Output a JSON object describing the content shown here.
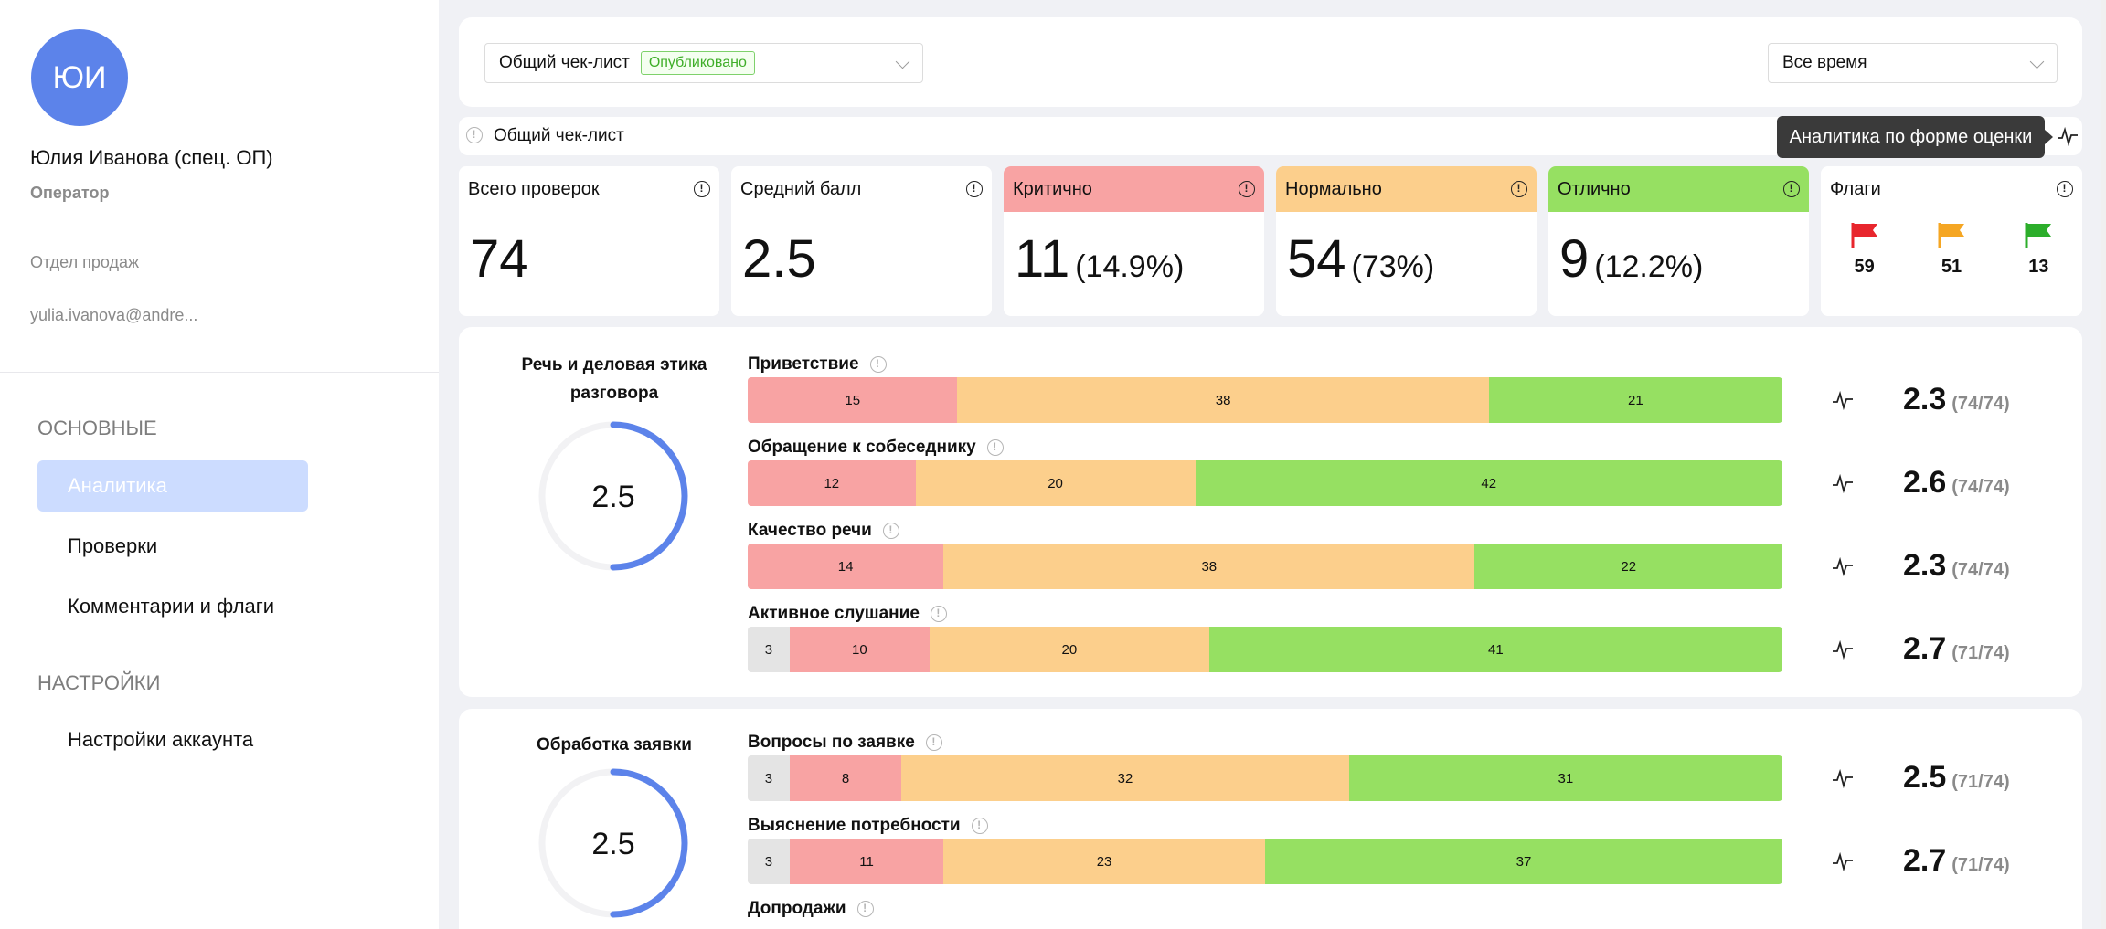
{
  "user": {
    "initials": "ЮИ",
    "name": "Юлия Иванова (спец. ОП)",
    "role": "Оператор",
    "department": "Отдел продаж",
    "email": "yulia.ivanova@andre..."
  },
  "nav": {
    "main_label": "ОСНОВНЫЕ",
    "items": [
      {
        "label": "Аналитика",
        "active": true
      },
      {
        "label": "Проверки",
        "active": false
      },
      {
        "label": "Комментарии и флаги",
        "active": false
      }
    ],
    "settings_label": "НАСТРОЙКИ",
    "settings_items": [
      {
        "label": "Настройки аккаунта"
      }
    ]
  },
  "filters": {
    "checklist": {
      "value": "Общий чек-лист",
      "badge": "Опубликовано"
    },
    "period": {
      "value": "Все время"
    }
  },
  "checklist_bar": {
    "label": "Общий чек-лист",
    "tooltip": "Аналитика по форме оценки"
  },
  "stats": {
    "total": {
      "label": "Всего проверок",
      "value": "74"
    },
    "average": {
      "label": "Средний балл",
      "value": "2.5"
    },
    "critical": {
      "label": "Критично",
      "value": "11",
      "pct": "(14.9%)",
      "color": "#f8a3a3"
    },
    "normal": {
      "label": "Нормально",
      "value": "54",
      "pct": "(73%)",
      "color": "#fccf8c"
    },
    "excellent": {
      "label": "Отлично",
      "value": "9",
      "pct": "(12.2%)",
      "color": "#96e062"
    },
    "flags": {
      "label": "Флаги",
      "red": "59",
      "orange": "51",
      "green": "13",
      "colors": [
        "#e8262d",
        "#f5a623",
        "#2cae2b"
      ]
    }
  },
  "sections": [
    {
      "title": "Речь и деловая этика разговора",
      "score": "2.5",
      "gauge_fraction": 0.5,
      "criteria": [
        {
          "name": "Приветствие",
          "segments": {
            "gray": null,
            "red": 15,
            "orange": 38,
            "green": 21
          },
          "score": "2.3",
          "count": "(74/74)"
        },
        {
          "name": "Обращение к собеседнику",
          "segments": {
            "gray": null,
            "red": 12,
            "orange": 20,
            "green": 42
          },
          "score": "2.6",
          "count": "(74/74)"
        },
        {
          "name": "Качество речи",
          "segments": {
            "gray": null,
            "red": 14,
            "orange": 38,
            "green": 22
          },
          "score": "2.3",
          "count": "(74/74)"
        },
        {
          "name": "Активное слушание",
          "segments": {
            "gray": 3,
            "red": 10,
            "orange": 20,
            "green": 41
          },
          "score": "2.7",
          "count": "(71/74)"
        }
      ]
    },
    {
      "title": "Обработка заявки",
      "score": "2.5",
      "gauge_fraction": 0.5,
      "criteria": [
        {
          "name": "Вопросы по заявке",
          "segments": {
            "gray": 3,
            "red": 8,
            "orange": 32,
            "green": 31
          },
          "score": "2.5",
          "count": "(71/74)"
        },
        {
          "name": "Выяснение потребности",
          "segments": {
            "gray": 3,
            "red": 11,
            "orange": 23,
            "green": 37
          },
          "score": "2.7",
          "count": "(71/74)"
        },
        {
          "name": "Допродажи",
          "segments": {
            "gray": null,
            "red": null,
            "orange": null,
            "green": null
          },
          "score": "",
          "count": ""
        }
      ]
    }
  ]
}
